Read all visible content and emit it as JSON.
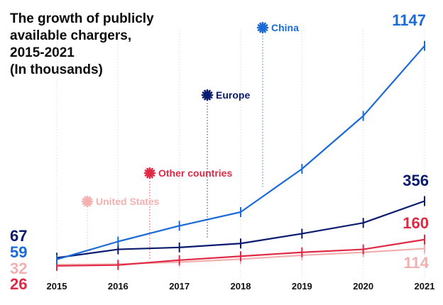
{
  "chart_data": {
    "type": "line",
    "title_lines": [
      "The growth of publicly",
      "available chargers,",
      "2015-2021",
      "(In thousands)"
    ],
    "categories": [
      "2015",
      "2016",
      "2017",
      "2018",
      "2019",
      "2020",
      "2021"
    ],
    "ylim": [
      0,
      1200
    ],
    "grid": "vertical dotted guide lines at each year",
    "legend_placement": "inline labels with asterisk markers above the lines",
    "series": [
      {
        "name": "China",
        "color": "#1a6ad8",
        "values": [
          59,
          150,
          230,
          300,
          520,
          790,
          1147
        ],
        "start_label": "59",
        "end_label": "1147"
      },
      {
        "name": "Europe",
        "color": "#0a1a6e",
        "values": [
          67,
          110,
          120,
          140,
          190,
          245,
          356
        ],
        "start_label": "67",
        "end_label": "356"
      },
      {
        "name": "Other countries",
        "color": "#e02a45",
        "values": [
          26,
          30,
          55,
          75,
          95,
          110,
          160
        ],
        "start_label": "26",
        "end_label": "160"
      },
      {
        "name": "United States",
        "color": "#f2b0b0",
        "values": [
          32,
          35,
          45,
          60,
          80,
          95,
          114
        ],
        "start_label": "32",
        "end_label": "114"
      }
    ]
  }
}
